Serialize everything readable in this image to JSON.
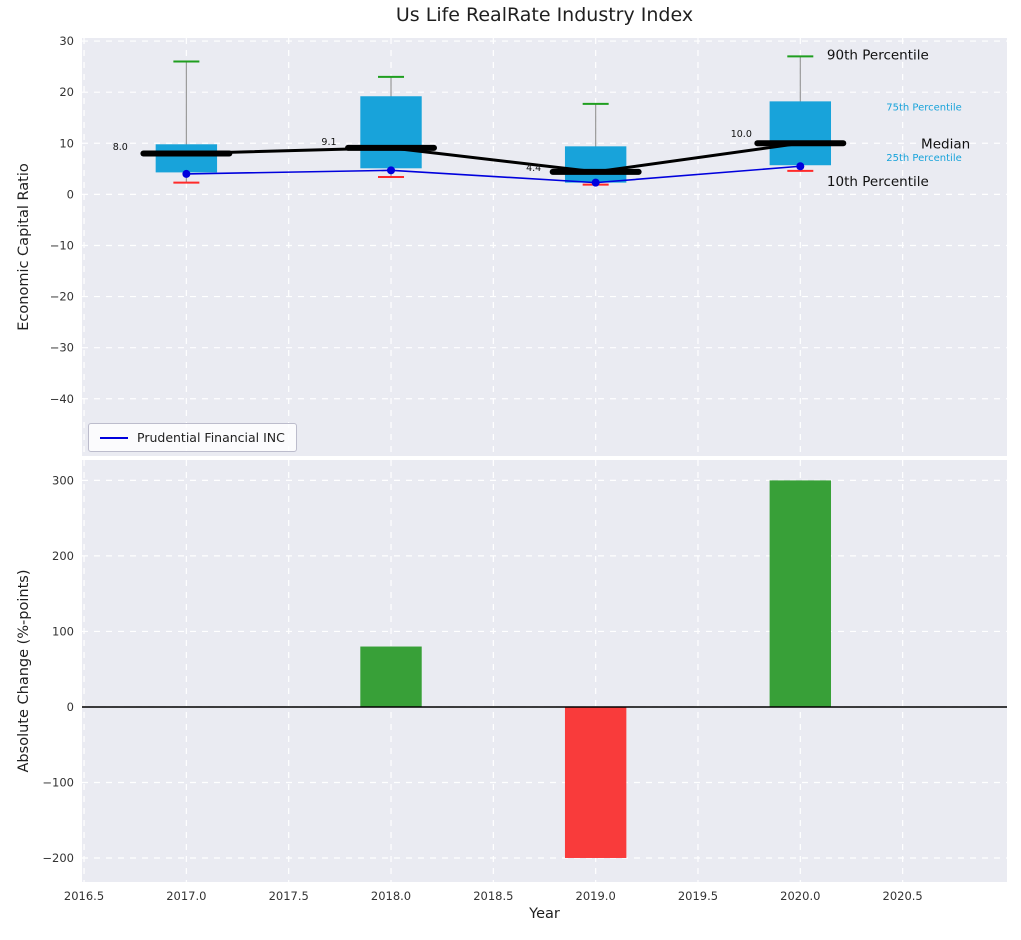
{
  "figure": {
    "title": "Us Life RealRate Industry Index",
    "xlabel": "Year",
    "xlim": [
      2016.49,
      2021.01
    ]
  },
  "colors": {
    "panel_bg": "#eaebf2",
    "grid": "#ffffff",
    "box_fill": "#18a3da",
    "whisker": "#999999",
    "cap_top": "#1f9e1f",
    "cap_bottom": "#ff2a2a",
    "median_line": "#000000",
    "company_line": "#0000dd",
    "tick_label": "#333333",
    "bar_positive": "#38a038",
    "bar_negative": "#f93b3b"
  },
  "chart_data": [
    {
      "type": "boxplot",
      "title": "Us Life RealRate Industry Index",
      "ylabel": "Economic Capital Ratio",
      "ylim": [
        -51.2,
        30.6
      ],
      "yticks": [
        30,
        20,
        10,
        0,
        -10,
        -20,
        -30,
        -40
      ],
      "grid": true,
      "legend": {
        "position": "lower left",
        "entries": [
          {
            "label": "Prudential Financial INC",
            "color": "#0000dd"
          }
        ]
      },
      "years": [
        2017,
        2018,
        2019,
        2020
      ],
      "percentiles": [
        {
          "year": 2017,
          "p10": 2.3,
          "p25": 4.3,
          "median": 8.0,
          "p75": 9.8,
          "p90": 26.0
        },
        {
          "year": 2018,
          "p10": 3.4,
          "p25": 5.1,
          "median": 9.1,
          "p75": 19.2,
          "p90": 23.0
        },
        {
          "year": 2019,
          "p10": 1.9,
          "p25": 2.3,
          "median": 4.4,
          "p75": 9.4,
          "p90": 17.7
        },
        {
          "year": 2020,
          "p10": 4.6,
          "p25": 5.7,
          "median": 10.0,
          "p75": 18.2,
          "p90": 27.0
        }
      ],
      "median_values": [
        8.0,
        9.1,
        4.4,
        10.0
      ],
      "company_line": {
        "name": "Prudential Financial INC",
        "x": [
          2017,
          2018,
          2019,
          2020
        ],
        "y": [
          4.0,
          4.7,
          2.3,
          5.5
        ]
      },
      "median_labels": [
        {
          "text": "8.0",
          "x": 2016.64,
          "y": 9.3
        },
        {
          "text": "9.1",
          "x": 2017.66,
          "y": 10.2
        },
        {
          "text": "4.4",
          "x": 2018.66,
          "y": 5.2
        },
        {
          "text": "10.0",
          "x": 2019.66,
          "y": 11.8
        }
      ],
      "annotations": [
        {
          "text": "90th Percentile",
          "x": 2020.13,
          "y": 27.3,
          "color": "#111111",
          "size": 13.5
        },
        {
          "text": "75th Percentile",
          "x": 2020.42,
          "y": 17.1,
          "color": "#18a3da",
          "size": 10
        },
        {
          "text": "Median",
          "x": 2020.59,
          "y": 9.9,
          "color": "#111111",
          "size": 13.5
        },
        {
          "text": "25th Percentile",
          "x": 2020.42,
          "y": 7.2,
          "color": "#18a3da",
          "size": 10
        },
        {
          "text": "10th Percentile",
          "x": 2020.13,
          "y": 2.6,
          "color": "#111111",
          "size": 13.5
        }
      ]
    },
    {
      "type": "bar",
      "ylabel": "Absolute Change (%-points)",
      "xlabel": "Year",
      "ylim": [
        -231.8,
        327
      ],
      "yticks": [
        300,
        200,
        100,
        0,
        -100,
        -200
      ],
      "xticks": [
        2016.5,
        2017.0,
        2017.5,
        2018.0,
        2018.5,
        2019.0,
        2019.5,
        2020.0,
        2020.5
      ],
      "bar_width": 0.3,
      "bars": [
        {
          "year": 2018,
          "value": 80,
          "color": "#38a038"
        },
        {
          "year": 2019,
          "value": -200,
          "color": "#f93b3b"
        },
        {
          "year": 2020,
          "value": 300,
          "color": "#38a038"
        }
      ]
    }
  ]
}
